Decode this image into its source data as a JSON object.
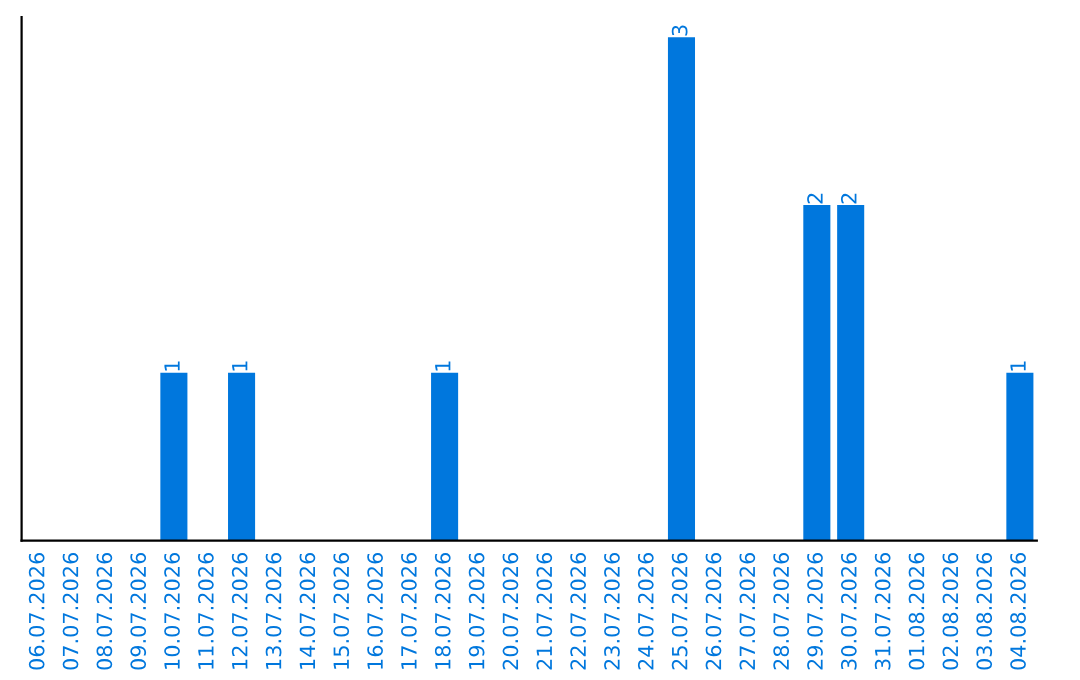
{
  "chart_data": {
    "type": "bar",
    "categories": [
      "06.07.2026",
      "07.07.2026",
      "08.07.2026",
      "09.07.2026",
      "10.07.2026",
      "11.07.2026",
      "12.07.2026",
      "13.07.2026",
      "14.07.2026",
      "15.07.2026",
      "16.07.2026",
      "17.07.2026",
      "18.07.2026",
      "19.07.2026",
      "20.07.2026",
      "21.07.2026",
      "22.07.2026",
      "23.07.2026",
      "24.07.2026",
      "25.07.2026",
      "26.07.2026",
      "27.07.2026",
      "28.07.2026",
      "29.07.2026",
      "30.07.2026",
      "31.07.2026",
      "01.08.2026",
      "02.08.2026",
      "03.08.2026",
      "04.08.2026"
    ],
    "values": [
      0,
      0,
      0,
      0,
      1,
      0,
      1,
      0,
      0,
      0,
      0,
      0,
      1,
      0,
      0,
      0,
      0,
      0,
      0,
      3,
      0,
      0,
      0,
      2,
      2,
      0,
      0,
      0,
      0,
      1
    ],
    "color": "#0077dd",
    "value_labels": [
      null,
      null,
      null,
      null,
      "1",
      null,
      "1",
      null,
      null,
      null,
      null,
      null,
      "1",
      null,
      null,
      null,
      null,
      null,
      null,
      "3",
      null,
      null,
      null,
      "2",
      "2",
      null,
      null,
      null,
      null,
      "1"
    ],
    "tick_labels": "x",
    "grid": false,
    "legend": false
  }
}
